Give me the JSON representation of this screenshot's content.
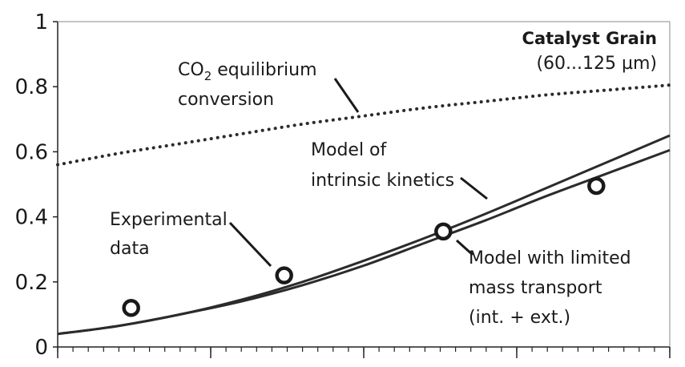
{
  "chart_data": {
    "type": "line",
    "title": "",
    "xlabel": "",
    "ylabel": "",
    "ylim": [
      0,
      1
    ],
    "xlim": [
      0,
      10
    ],
    "y_ticks": [
      "0",
      "0.2",
      "0.4",
      "0.6",
      "0.8",
      "1"
    ],
    "x_minor_tick_count": 41,
    "x_major_ticks": [
      0,
      2.5,
      5,
      7.5,
      10
    ],
    "grid": false,
    "colors": {
      "line": "#2b2b2b",
      "marker": "#1a1a1a"
    },
    "series": [
      {
        "name": "CO2 equilibrium conversion",
        "style": "dotted",
        "x": [
          0,
          1,
          2,
          3,
          4,
          5,
          6,
          7,
          8,
          9,
          10
        ],
        "y": [
          0.56,
          0.595,
          0.625,
          0.655,
          0.685,
          0.71,
          0.735,
          0.755,
          0.775,
          0.79,
          0.805
        ]
      },
      {
        "name": "Model of intrinsic kinetics",
        "style": "solid",
        "x": [
          0,
          1,
          2,
          3,
          4,
          5,
          6,
          7,
          8,
          9,
          10
        ],
        "y": [
          0.04,
          0.065,
          0.1,
          0.145,
          0.2,
          0.265,
          0.335,
          0.41,
          0.49,
          0.57,
          0.65
        ]
      },
      {
        "name": "Model with limited mass transport (int. + ext.)",
        "style": "solid",
        "x": [
          0,
          1,
          2,
          3,
          4,
          5,
          6,
          7,
          8,
          9,
          10
        ],
        "y": [
          0.04,
          0.065,
          0.1,
          0.14,
          0.19,
          0.25,
          0.32,
          0.39,
          0.465,
          0.535,
          0.605
        ]
      },
      {
        "name": "Experimental data",
        "style": "marker",
        "x": [
          1.2,
          3.7,
          6.3,
          8.8
        ],
        "y": [
          0.12,
          0.22,
          0.355,
          0.495
        ]
      }
    ],
    "annotations": {
      "grain_title": "Catalyst Grain",
      "grain_size": "(60...125 µm)",
      "eq_line1_pre": "CO",
      "eq_line1_sub": "2",
      "eq_line1_post": " equilibrium",
      "eq_line2": "conversion",
      "intr_line1": "Model of",
      "intr_line2": "intrinsic kinetics",
      "exp_line1": "Experimental",
      "exp_line2": "data",
      "mt_line1": "Model with limited",
      "mt_line2": "mass transport",
      "mt_line3": "(int. + ext.)"
    }
  }
}
